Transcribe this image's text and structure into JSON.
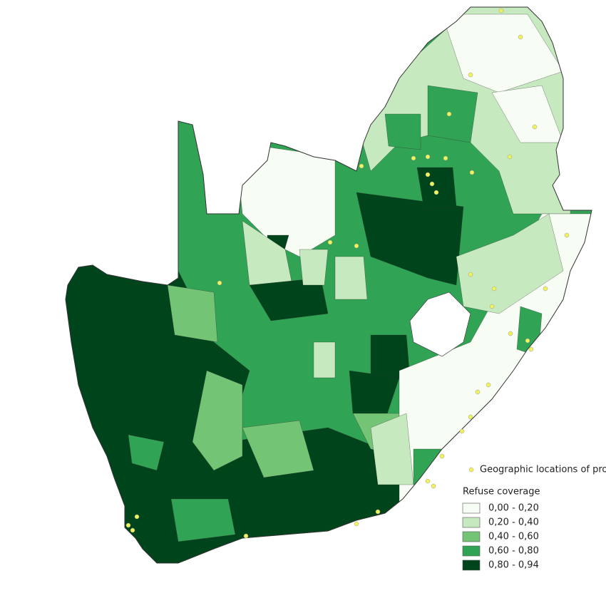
{
  "legend": {
    "protests_label": "Geographic locations of protests",
    "protests_color": "#f2f25a",
    "title": "Refuse coverage",
    "classes": [
      {
        "label": "0,00 - 0,20",
        "color": "#f7fcf5"
      },
      {
        "label": "0,20 - 0,40",
        "color": "#c7e9c0"
      },
      {
        "label": "0,40 - 0,60",
        "color": "#74c476"
      },
      {
        "label": "0,60 - 0,80",
        "color": "#31a354"
      },
      {
        "label": "0,80 - 0,94",
        "color": "#00441b"
      }
    ]
  }
}
